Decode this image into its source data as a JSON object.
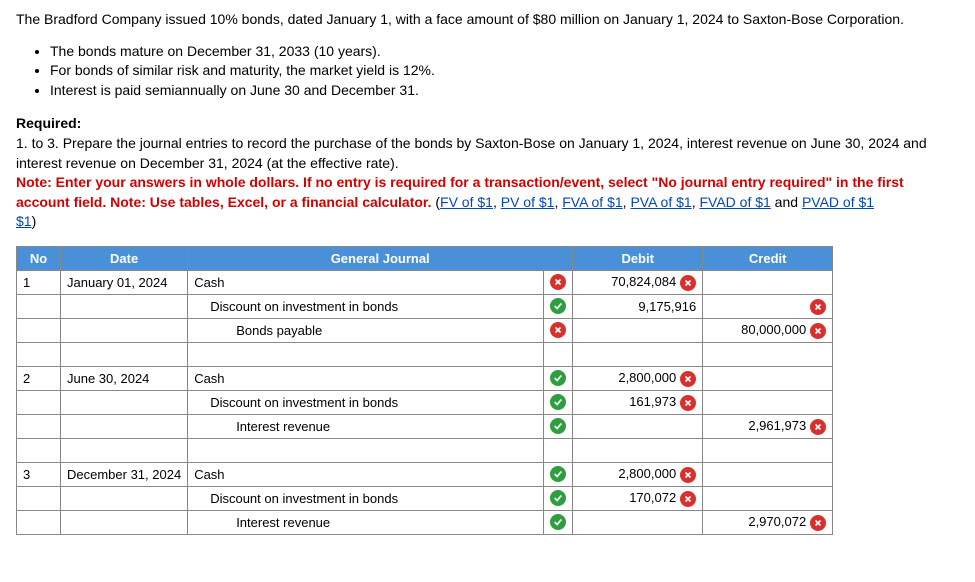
{
  "intro": "The Bradford Company issued 10% bonds, dated January 1, with a face amount of $80 million on January 1, 2024 to Saxton-Bose Corporation.",
  "bullets": [
    "The bonds mature on December 31, 2033 (10 years).",
    "For bonds of similar risk and maturity, the market yield is 12%.",
    "Interest is paid semiannually on June 30 and December 31."
  ],
  "required_label": "Required:",
  "required_body": "1. to 3. Prepare the journal entries to record the purchase of the bonds by Saxton-Bose on January 1, 2024, interest revenue on June 30, 2024 and interest revenue on December 31, 2024 (at the effective rate).",
  "note_prefix": "Note: Enter your answers in whole dollars. If no entry is required for a transaction/event, select \"No journal entry required\" in the first account field. Note: Use tables, Excel, or a financial calculator. ",
  "links": {
    "fv": "FV of $1",
    "pv": "PV of $1",
    "fva": "FVA of $1",
    "pva": "PVA of $1",
    "fvad": "FVAD of $1",
    "pvad": "PVAD of $1",
    "tail": "$1"
  },
  "and_word": " and ",
  "close_paren": ")",
  "headers": {
    "no": "No",
    "date": "Date",
    "gj": "General Journal",
    "debit": "Debit",
    "credit": "Credit"
  },
  "rows": [
    {
      "no": "1",
      "date": "January 01, 2024",
      "acct": "Cash",
      "indent": 0,
      "mark": "bad",
      "debit": "70,824,084",
      "debit_mark": "bad",
      "credit": "",
      "credit_mark": "",
      "pink_debit": true,
      "pink_credit": true
    },
    {
      "no": "",
      "date": "",
      "acct": "Discount on investment in bonds",
      "indent": 1,
      "mark": "ok",
      "debit": "9,175,916",
      "debit_mark": "",
      "credit": "",
      "credit_mark": "bad",
      "pink_debit": true,
      "pink_credit": true
    },
    {
      "no": "",
      "date": "",
      "acct": "Bonds payable",
      "indent": 2,
      "mark": "bad",
      "debit": "",
      "debit_mark": "",
      "credit": "80,000,000",
      "credit_mark": "bad",
      "pink_debit": true,
      "pink_credit": true
    },
    {
      "spacer": true
    },
    {
      "no": "2",
      "date": "June 30, 2024",
      "acct": "Cash",
      "indent": 0,
      "mark": "ok",
      "debit": "2,800,000",
      "debit_mark": "bad",
      "credit": "",
      "credit_mark": "",
      "pink_debit": true,
      "pink_credit": true
    },
    {
      "no": "",
      "date": "",
      "acct": "Discount on investment in bonds",
      "indent": 1,
      "mark": "ok",
      "debit": "161,973",
      "debit_mark": "bad",
      "credit": "",
      "credit_mark": "",
      "pink_debit": true,
      "pink_credit": true
    },
    {
      "no": "",
      "date": "",
      "acct": "Interest revenue",
      "indent": 2,
      "mark": "ok",
      "debit": "",
      "debit_mark": "",
      "credit": "2,961,973",
      "credit_mark": "bad",
      "pink_debit": true,
      "pink_credit": true
    },
    {
      "spacer": true
    },
    {
      "no": "3",
      "date": "December 31, 2024",
      "acct": "Cash",
      "indent": 0,
      "mark": "ok",
      "debit": "2,800,000",
      "debit_mark": "bad",
      "credit": "",
      "credit_mark": "",
      "pink_debit": true,
      "pink_credit": true
    },
    {
      "no": "",
      "date": "",
      "acct": "Discount on investment in bonds",
      "indent": 1,
      "mark": "ok",
      "debit": "170,072",
      "debit_mark": "bad",
      "credit": "",
      "credit_mark": "",
      "pink_debit": true,
      "pink_credit": true
    },
    {
      "no": "",
      "date": "",
      "acct": "Interest revenue",
      "indent": 2,
      "mark": "ok",
      "debit": "",
      "debit_mark": "",
      "credit": "2,970,072",
      "credit_mark": "bad",
      "pink_debit": true,
      "pink_credit": true
    }
  ]
}
